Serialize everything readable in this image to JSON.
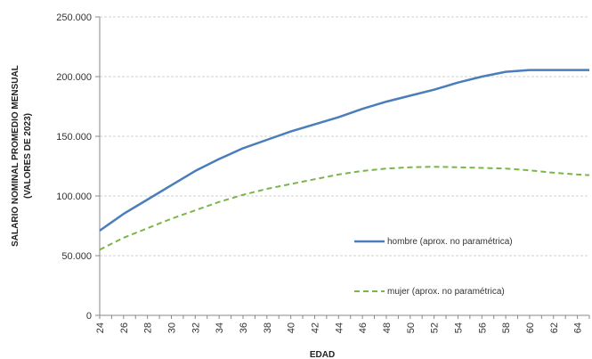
{
  "chart_data": {
    "type": "line",
    "xlabel": "EDAD",
    "ylabel_line1": "SALARIO  NOMINAL PROMEDIO MENSUAL",
    "ylabel_line2": "(VALORES DE 2023)",
    "ylim": [
      0,
      250000
    ],
    "yticks": [
      0,
      50000,
      100000,
      150000,
      200000,
      250000
    ],
    "ytick_labels": [
      "0",
      "50.000",
      "100.000",
      "150.000",
      "200.000",
      "250.000"
    ],
    "xlim": [
      24,
      65
    ],
    "xticks": [
      24,
      26,
      28,
      30,
      32,
      34,
      36,
      38,
      40,
      42,
      44,
      46,
      48,
      50,
      52,
      54,
      56,
      58,
      60,
      62,
      64
    ],
    "xtick_labels": [
      "24",
      "26",
      "28",
      "30",
      "32",
      "34",
      "36",
      "38",
      "40",
      "42",
      "44",
      "46",
      "48",
      "50",
      "52",
      "54",
      "56",
      "58",
      "60",
      "62",
      "64"
    ],
    "grid": true,
    "legend_position": "right",
    "x": [
      24,
      26,
      28,
      30,
      32,
      34,
      36,
      38,
      40,
      42,
      44,
      46,
      48,
      50,
      52,
      54,
      56,
      58,
      60,
      62,
      64,
      65
    ],
    "series": [
      {
        "name": "hombre (aprox. no paramétrica)",
        "color": "#4a7ebb",
        "dash": "solid",
        "values": [
          71000,
          85000,
          97000,
          109000,
          121000,
          131000,
          140000,
          147000,
          154000,
          160000,
          166000,
          173000,
          179000,
          184000,
          189000,
          195000,
          200000,
          204000,
          205500,
          205500,
          205500,
          205500
        ]
      },
      {
        "name": "mujer (aprox. no paramétrica)",
        "color": "#7ab648",
        "dash": "dashed",
        "values": [
          55000,
          65000,
          73000,
          81000,
          88000,
          95000,
          101000,
          106000,
          110000,
          114000,
          118000,
          121000,
          123000,
          124000,
          124500,
          124000,
          123500,
          123000,
          121500,
          119500,
          118000,
          117500
        ]
      }
    ]
  }
}
